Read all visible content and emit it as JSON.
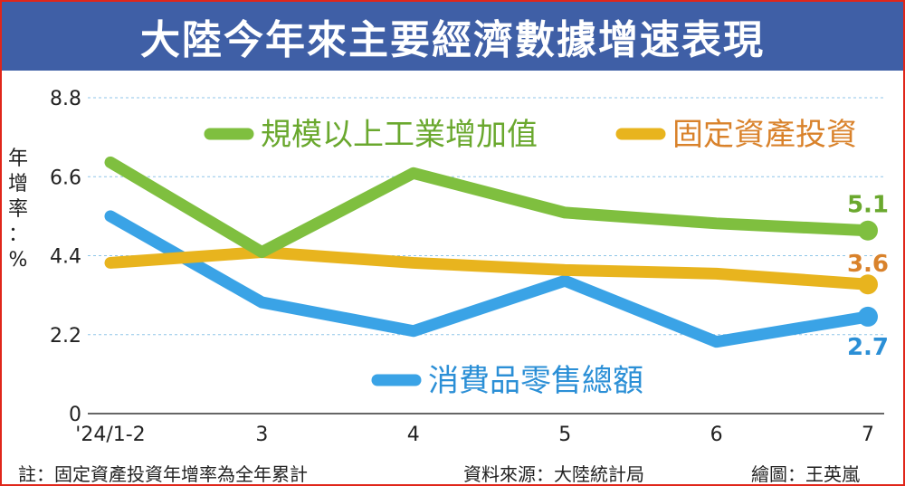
{
  "title": "大陸今年來主要經濟數據增速表現",
  "footer": {
    "note": "註：固定資產投資年增率為全年累計",
    "source": "資料來源：大陸統計局",
    "credit": "繪圖：王英嵐"
  },
  "colors": {
    "title_bg": "#3f5fa6",
    "border": "#e0261a",
    "industrial": "#7fbf3f",
    "fixed_asset": "#e8b41e",
    "retail": "#3aa3e6"
  },
  "chart_data": {
    "type": "line",
    "title": "",
    "xlabel": "",
    "ylabel": "年增率：%",
    "ylim": [
      0,
      8.8
    ],
    "yticks": [
      "0",
      "2.2",
      "4.4",
      "6.6",
      "8.8"
    ],
    "ytick_values": [
      0,
      2.2,
      4.4,
      6.6,
      8.8
    ],
    "categories": [
      "'24/1-2",
      "3",
      "4",
      "5",
      "6",
      "7"
    ],
    "grid": true,
    "series": [
      {
        "name": "規模以上工業增加值",
        "color": "#7fbf3f",
        "label_color": "#6aa82e",
        "values": [
          7.0,
          4.5,
          6.7,
          5.6,
          5.3,
          5.1
        ],
        "end_label": "5.1"
      },
      {
        "name": "固定資產投資",
        "color": "#e8b41e",
        "label_color": "#d9822b",
        "values": [
          4.2,
          4.5,
          4.2,
          4.0,
          3.9,
          3.6
        ],
        "end_label": "3.6"
      },
      {
        "name": "消費品零售總額",
        "color": "#3aa3e6",
        "label_color": "#2b8fd6",
        "values": [
          5.5,
          3.1,
          2.3,
          3.7,
          2.0,
          2.7
        ],
        "end_label": "2.7"
      }
    ]
  }
}
